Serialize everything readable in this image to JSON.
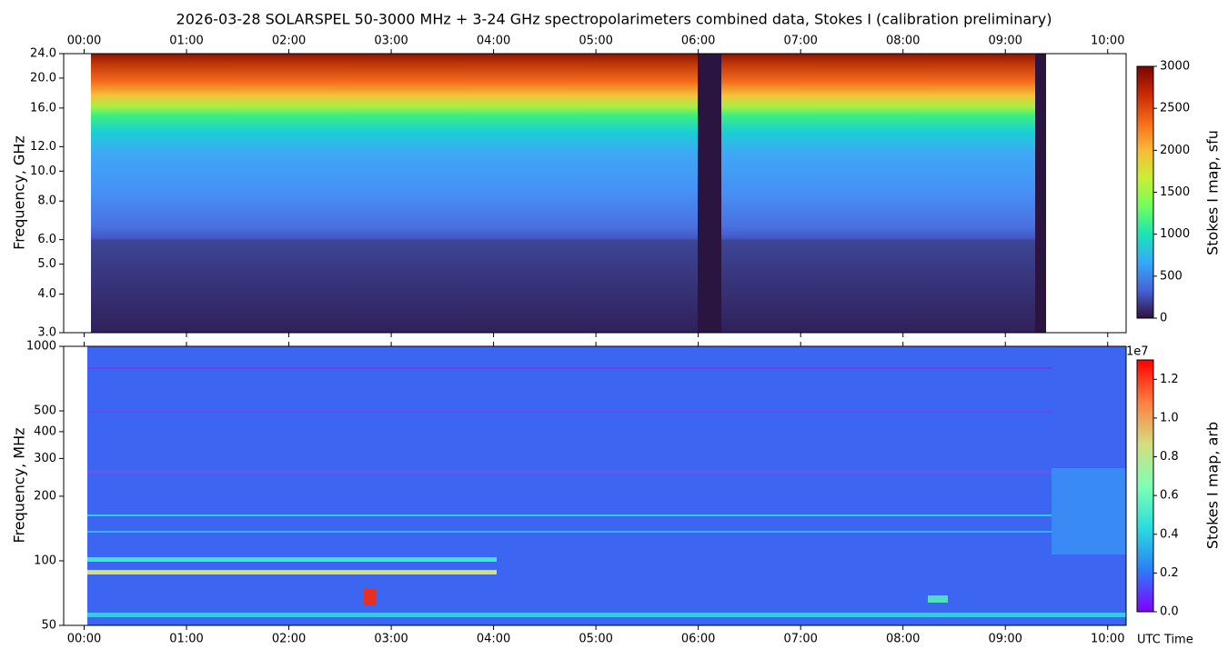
{
  "chart_data": [
    {
      "type": "spectrogram",
      "title": "2026-03-28  SOLARSPEL  50-3000 MHz  +  3-24 GHz  spectropolarimeters combined data,  Stokes I  (calibration preliminary)",
      "y_label": "Frequency, GHz",
      "log_y": true,
      "ylim": [
        3,
        24
      ],
      "yticks": [
        {
          "value": 3,
          "label": "3.0"
        },
        {
          "value": 4,
          "label": "4.0"
        },
        {
          "value": 5,
          "label": "5.0"
        },
        {
          "value": 6,
          "label": "6.0"
        },
        {
          "value": 8,
          "label": "8.0"
        },
        {
          "value": 10,
          "label": "10.0"
        },
        {
          "value": 12,
          "label": "12.0"
        },
        {
          "value": 16,
          "label": "16.0"
        },
        {
          "value": 20,
          "label": "20.0"
        },
        {
          "value": 24,
          "label": "24.0"
        }
      ],
      "xlim": [
        -0.2,
        10.18
      ],
      "xticks": [
        {
          "value": 0,
          "label": "00:00"
        },
        {
          "value": 1,
          "label": "01:00"
        },
        {
          "value": 2,
          "label": "02:00"
        },
        {
          "value": 3,
          "label": "03:00"
        },
        {
          "value": 4,
          "label": "04:00"
        },
        {
          "value": 5,
          "label": "05:00"
        },
        {
          "value": 6,
          "label": "06:00"
        },
        {
          "value": 7,
          "label": "07:00"
        },
        {
          "value": 8,
          "label": "08:00"
        },
        {
          "value": 9,
          "label": "09:00"
        },
        {
          "value": 10,
          "label": "10:00"
        }
      ],
      "colorbar_label": "Stokes I map, sfu",
      "colormap": "turbo",
      "clim": [
        0,
        3000
      ],
      "cticks": [
        0,
        500,
        1000,
        1500,
        2000,
        2500,
        3000
      ]
    },
    {
      "type": "spectrogram",
      "y_label": "Frequency, MHz",
      "x_label": "UTC Time",
      "log_y": true,
      "ylim": [
        50,
        1000
      ],
      "yticks": [
        50,
        100,
        200,
        300,
        400,
        500,
        1000
      ],
      "xlim": [
        -0.2,
        10.18
      ],
      "xticks": [
        {
          "value": 0,
          "label": "00:00"
        },
        {
          "value": 1,
          "label": "01:00"
        },
        {
          "value": 2,
          "label": "02:00"
        },
        {
          "value": 3,
          "label": "03:00"
        },
        {
          "value": 4,
          "label": "04:00"
        },
        {
          "value": 5,
          "label": "05:00"
        },
        {
          "value": 6,
          "label": "06:00"
        },
        {
          "value": 7,
          "label": "07:00"
        },
        {
          "value": 8,
          "label": "08:00"
        },
        {
          "value": 9,
          "label": "09:00"
        },
        {
          "value": 10,
          "label": "10:00"
        }
      ],
      "colorbar_label": "Stokes I map, arb",
      "colormap": "rainbow",
      "clim": [
        0,
        13000000
      ],
      "colorbar_offset": "1e7",
      "cticks": [
        {
          "value": 0,
          "label": "0.0"
        },
        {
          "value": 2000000,
          "label": "0.2"
        },
        {
          "value": 4000000,
          "label": "0.4"
        },
        {
          "value": 6000000,
          "label": "0.6"
        },
        {
          "value": 8000000,
          "label": "0.8"
        },
        {
          "value": 10000000,
          "label": "1.0"
        },
        {
          "value": 12000000,
          "label": "1.2"
        }
      ]
    }
  ]
}
